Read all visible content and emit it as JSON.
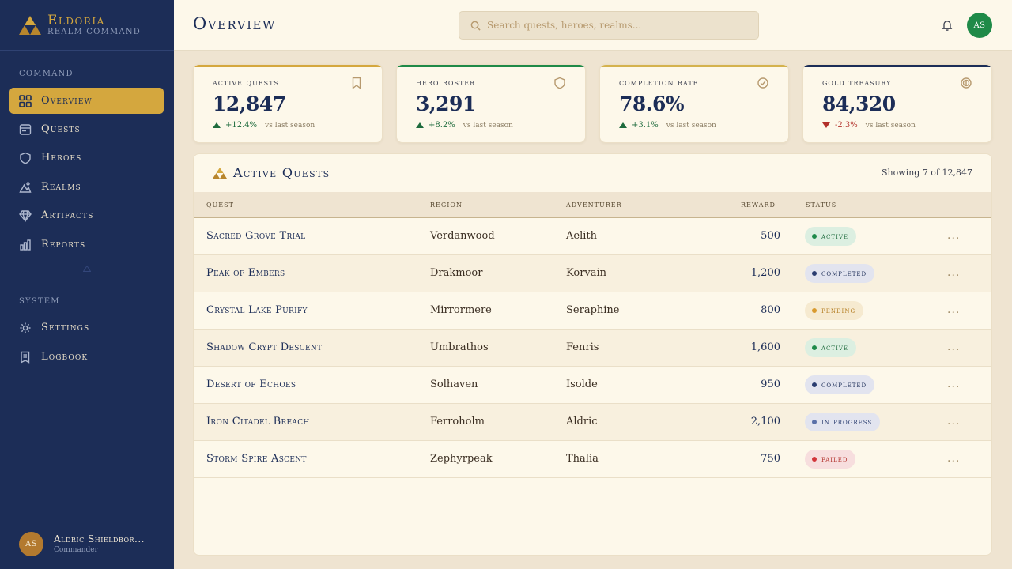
{
  "brand": {
    "name": "Eldoria",
    "subtitle": "Realm Command"
  },
  "sidebar": {
    "section_command": "Command",
    "section_system": "System",
    "items": [
      {
        "label": "Overview",
        "icon": "grid-icon",
        "active": true
      },
      {
        "label": "Quests",
        "icon": "scroll-icon"
      },
      {
        "label": "Heroes",
        "icon": "shield-icon"
      },
      {
        "label": "Realms",
        "icon": "mountain-icon"
      },
      {
        "label": "Artifacts",
        "icon": "gem-icon"
      },
      {
        "label": "Reports",
        "icon": "bar-chart-icon"
      }
    ],
    "system_items": [
      {
        "label": "Settings",
        "icon": "gear-icon"
      },
      {
        "label": "Logbook",
        "icon": "book-icon"
      }
    ],
    "user": {
      "initials": "AS",
      "name": "Aldric Shieldbor...",
      "role": "Commander"
    }
  },
  "header": {
    "title": "Overview",
    "search_placeholder": "Search quests, heroes, realms...",
    "avatar_initials": "AS"
  },
  "stats": [
    {
      "label": "Active Quests",
      "value": "12,847",
      "delta": "+12.4%",
      "direction": "up",
      "note": "vs last season",
      "accent": "#d4a73e",
      "icon": "bookmark-icon"
    },
    {
      "label": "Hero Roster",
      "value": "3,291",
      "delta": "+8.2%",
      "direction": "up",
      "note": "vs last season",
      "accent": "#1f8a48",
      "icon": "shield-icon"
    },
    {
      "label": "Completion Rate",
      "value": "78.6%",
      "delta": "+3.1%",
      "direction": "up",
      "note": "vs last season",
      "accent": "#d4b24e",
      "icon": "check-circle-icon"
    },
    {
      "label": "Gold Treasury",
      "value": "84,320",
      "delta": "-2.3%",
      "direction": "down",
      "note": "vs last season",
      "accent": "#1c2d57",
      "icon": "coin-icon"
    }
  ],
  "table": {
    "title": "Active Quests",
    "showing": "Showing 7 of 12,847",
    "columns": [
      "Quest",
      "Region",
      "Adventurer",
      "Reward",
      "Status"
    ],
    "rows": [
      {
        "quest": "Sacred Grove Trial",
        "region": "Verdanwood",
        "adventurer": "Aelith",
        "reward": "500",
        "status": "Active",
        "status_key": "active"
      },
      {
        "quest": "Peak of Embers",
        "region": "Drakmoor",
        "adventurer": "Korvain",
        "reward": "1,200",
        "status": "Completed",
        "status_key": "completed"
      },
      {
        "quest": "Crystal Lake Purify",
        "region": "Mirrormere",
        "adventurer": "Seraphine",
        "reward": "800",
        "status": "Pending",
        "status_key": "pending"
      },
      {
        "quest": "Shadow Crypt Descent",
        "region": "Umbrathos",
        "adventurer": "Fenris",
        "reward": "1,600",
        "status": "Active",
        "status_key": "active"
      },
      {
        "quest": "Desert of Echoes",
        "region": "Solhaven",
        "adventurer": "Isolde",
        "reward": "950",
        "status": "Completed",
        "status_key": "completed"
      },
      {
        "quest": "Iron Citadel Breach",
        "region": "Ferroholm",
        "adventurer": "Aldric",
        "reward": "2,100",
        "status": "In Progress",
        "status_key": "inprogress"
      },
      {
        "quest": "Storm Spire Ascent",
        "region": "Zephyrpeak",
        "adventurer": "Thalia",
        "reward": "750",
        "status": "Failed",
        "status_key": "failed"
      }
    ],
    "more_label": "..."
  }
}
